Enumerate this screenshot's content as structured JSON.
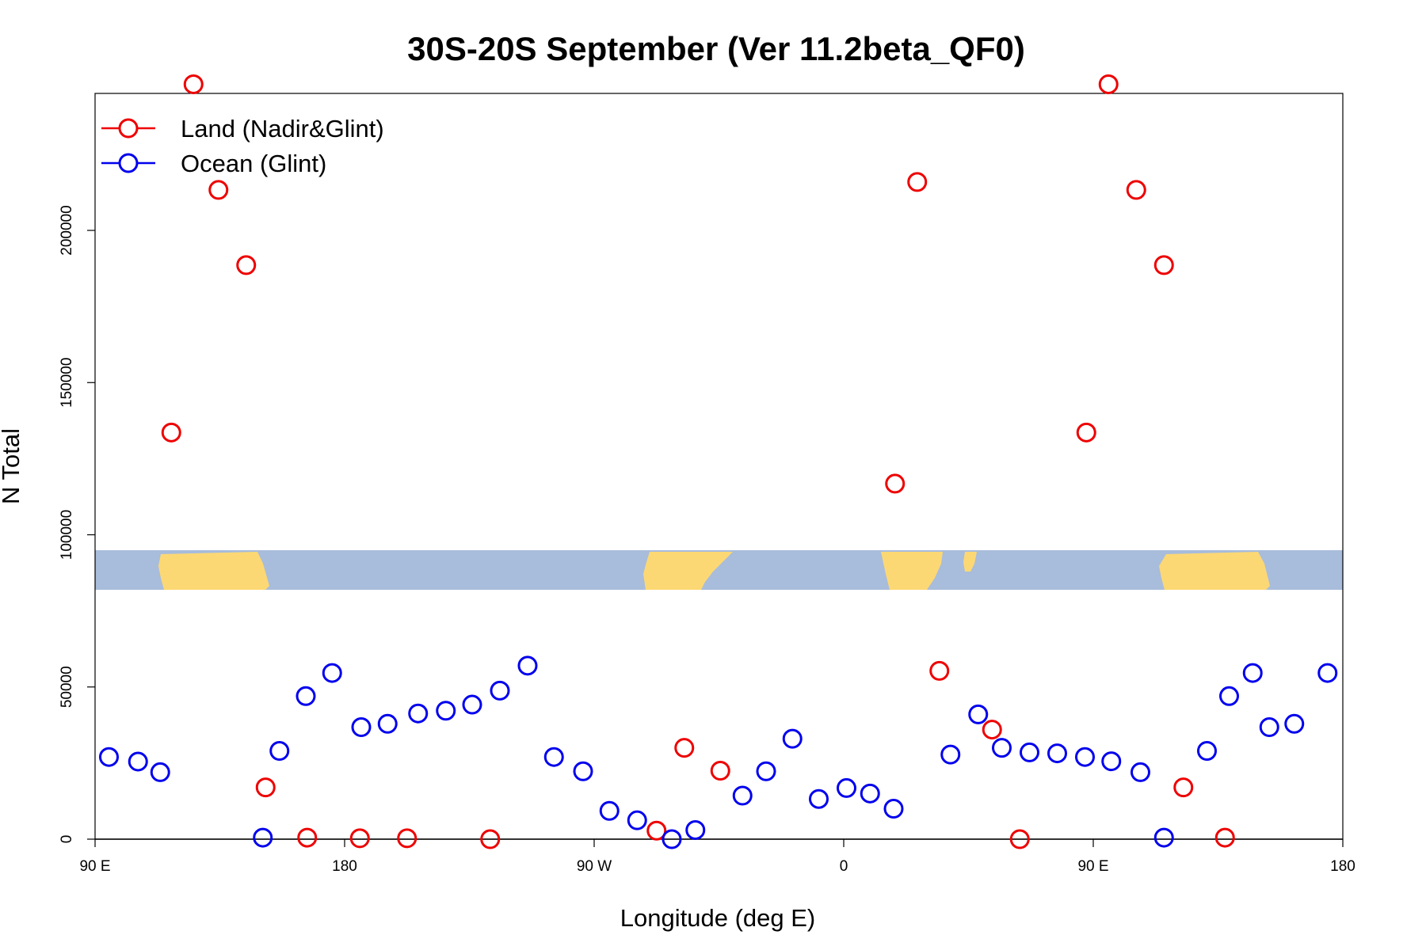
{
  "chart_data": {
    "type": "scatter",
    "title": "30S-20S September (Ver 11.2beta_QF0)",
    "xlabel": "Longitude (deg E)",
    "ylabel": "N Total",
    "xlim": [
      90,
      540
    ],
    "ylim": [
      0,
      245000
    ],
    "x_ticks": [
      {
        "value": 90,
        "label": "90 E"
      },
      {
        "value": 180,
        "label": "180"
      },
      {
        "value": 270,
        "label": "90 W"
      },
      {
        "value": 360,
        "label": "0"
      },
      {
        "value": 450,
        "label": "90 E"
      },
      {
        "value": 540,
        "label": "180"
      }
    ],
    "y_ticks": [
      {
        "value": 0,
        "label": "0"
      },
      {
        "value": 50000,
        "label": "50000"
      },
      {
        "value": 100000,
        "label": "100000"
      },
      {
        "value": 150000,
        "label": "150000"
      },
      {
        "value": 200000,
        "label": "200000"
      }
    ],
    "legend_position": "top-left",
    "map_band": {
      "description": "world map strip 30S-20S",
      "y_range": [
        83000,
        96000
      ],
      "ocean_color": "#a8bcdb",
      "land_color": "#fcd874"
    },
    "series": [
      {
        "name": "Land (Nadir&Glint)",
        "color": "#ee0000",
        "x": [
          117.5,
          125.5,
          134.5,
          144.5,
          151.5,
          166.5,
          185.5,
          202.5,
          232.5,
          292.5,
          302.5,
          315.5,
          378.5,
          386.5,
          394.5,
          413.5,
          423.5,
          447.5,
          455.5,
          465.5,
          475.5,
          482.5,
          497.5
        ],
        "y": [
          133600,
          248000,
          213300,
          188600,
          17000,
          500,
          300,
          300,
          0,
          2800,
          30000,
          22500,
          116800,
          215900,
          55300,
          36000,
          0,
          133600,
          248000,
          213300,
          188600,
          17000,
          500
        ]
      },
      {
        "name": "Ocean (Glint)",
        "color": "#0000ee",
        "x": [
          95,
          105.5,
          113.5,
          150.5,
          156.5,
          166,
          175.5,
          186,
          195.5,
          206.5,
          216.5,
          226,
          236,
          246,
          255.5,
          266,
          275.5,
          285.5,
          298,
          306.5,
          323.5,
          332,
          341.5,
          351,
          361,
          369.5,
          378,
          398.5,
          408.5,
          417,
          427,
          437,
          447,
          456.5,
          467,
          475.5,
          491,
          499,
          507.5,
          513.5,
          522.5,
          534.5
        ],
        "y": [
          27000,
          25500,
          22000,
          500,
          29000,
          47000,
          54600,
          36800,
          37900,
          41300,
          42200,
          44200,
          48800,
          57000,
          27000,
          22300,
          9300,
          6200,
          0,
          3000,
          14300,
          22300,
          33000,
          13200,
          16800,
          15000,
          10000,
          27800,
          41000,
          30000,
          28500,
          28200,
          27000,
          25600,
          22000,
          500,
          29000,
          47000,
          54600,
          36800,
          37900,
          54600
        ]
      }
    ]
  }
}
